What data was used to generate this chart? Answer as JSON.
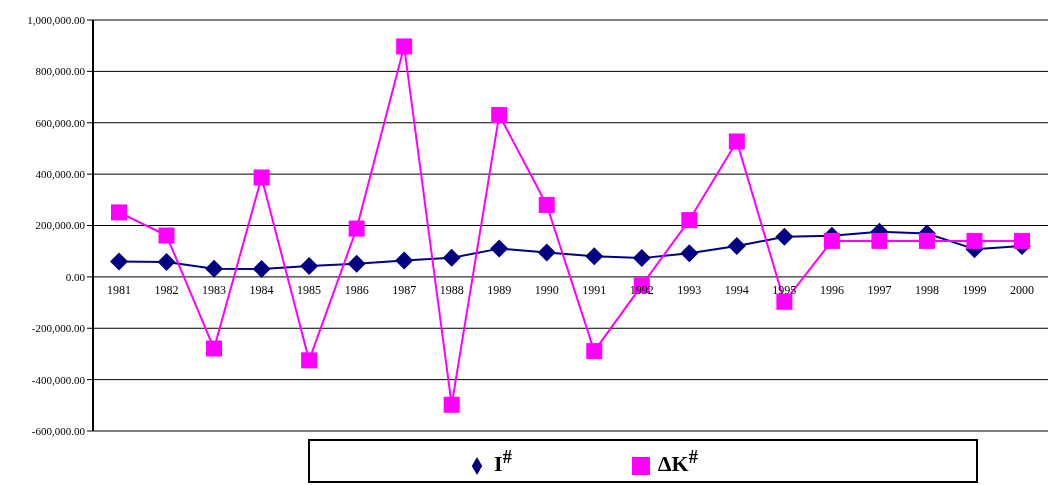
{
  "chart_data": {
    "type": "line",
    "categories": [
      "1981",
      "1982",
      "1983",
      "1984",
      "1985",
      "1986",
      "1987",
      "1988",
      "1989",
      "1990",
      "1991",
      "1992",
      "1993",
      "1994",
      "1995",
      "1996",
      "1997",
      "1998",
      "1999",
      "2000"
    ],
    "series": [
      {
        "name": "I$^{#}$",
        "color": "#000080",
        "marker": "diamond",
        "values": [
          60000,
          58000,
          32000,
          31000,
          42000,
          51000,
          64000,
          74000,
          110000,
          95000,
          80000,
          73000,
          92000,
          120000,
          156000,
          160000,
          176000,
          169000,
          108000,
          120000
        ]
      },
      {
        "name": "ΔK$^{#}$",
        "color": "#ff00ff",
        "marker": "square",
        "values": [
          251000,
          161000,
          -279000,
          387000,
          -325000,
          188000,
          897000,
          -498000,
          630000,
          280000,
          -289000,
          -33000,
          221000,
          527000,
          -97000,
          140000,
          140000,
          140000,
          140000,
          140000
        ]
      }
    ],
    "ylim": [
      -600000,
      1000000
    ],
    "yticks": [
      {
        "value": -600000,
        "label": "-600,000.00"
      },
      {
        "value": -400000,
        "label": "-400,000.00"
      },
      {
        "value": -200000,
        "label": "-200,000.00"
      },
      {
        "value": 0,
        "label": "0.00"
      },
      {
        "value": 200000,
        "label": "200,000.00"
      },
      {
        "value": 400000,
        "label": "400,000.00"
      },
      {
        "value": 600000,
        "label": "600,000.00"
      },
      {
        "value": 800000,
        "label": "800,000.00"
      },
      {
        "value": 1000000,
        "label": "1,000,000.00"
      }
    ],
    "grid": "y",
    "legend": "bottom"
  }
}
